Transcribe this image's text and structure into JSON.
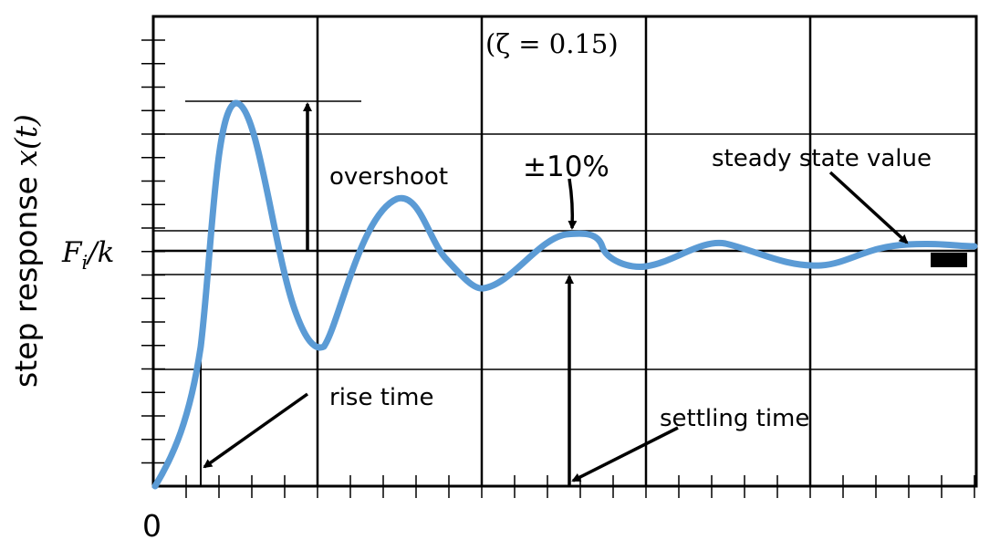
{
  "figure": {
    "ylabel_text": "step response ",
    "ylabel_var": "x(t)",
    "zeta_label": "(ζ = 0.15)",
    "origin_label": "0",
    "steady_label_var": "F",
    "steady_label_sub": "i",
    "steady_label_rest": "/k",
    "colors": {
      "curve": "#5b9bd5",
      "ink": "#000000"
    }
  },
  "annotations": {
    "overshoot": "overshoot",
    "tolerance": "±10%",
    "steady_state": "steady state value",
    "rise_time": "rise time",
    "settling_time": "settling time"
  }
}
